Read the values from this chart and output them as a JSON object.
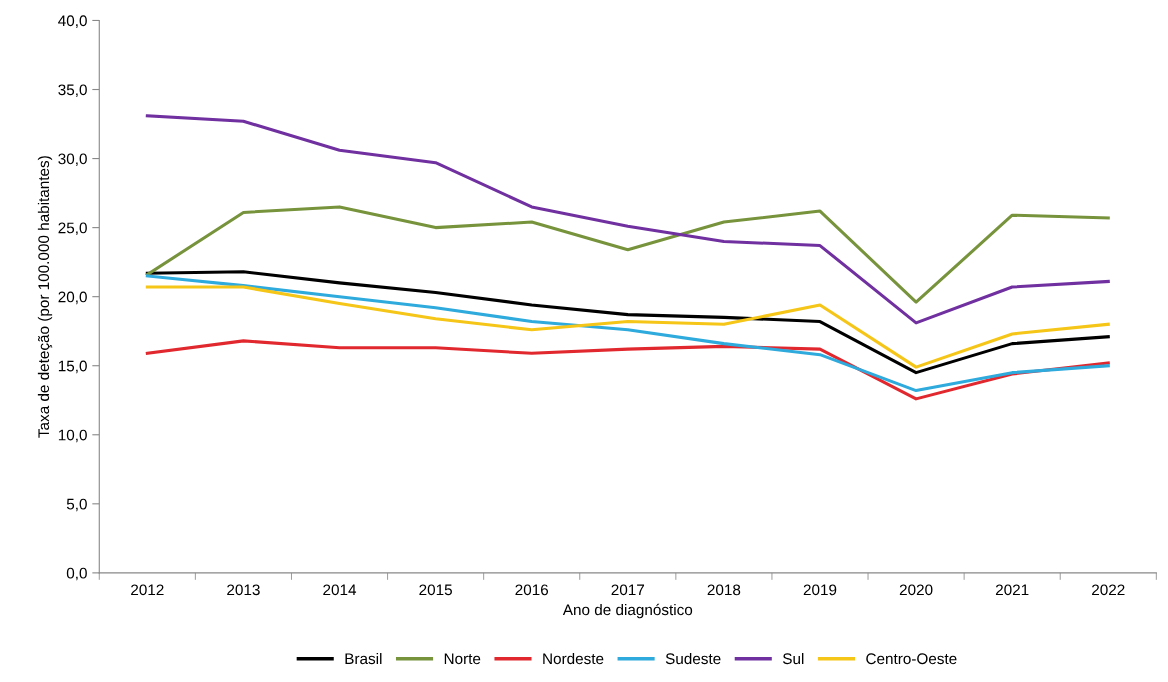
{
  "chart_data": {
    "type": "line",
    "xlabel": "Ano de diagnóstico",
    "ylabel": "Taxa de deteção (por 100.000 habitantes)",
    "categories": [
      "2012",
      "2013",
      "2014",
      "2015",
      "2016",
      "2017",
      "2018",
      "2019",
      "2020",
      "2021",
      "2022"
    ],
    "series": [
      {
        "name": "Brasil",
        "color": "#000000",
        "values": [
          21.7,
          21.8,
          21.0,
          20.3,
          19.4,
          18.7,
          18.5,
          18.2,
          14.5,
          16.6,
          17.1
        ]
      },
      {
        "name": "Norte",
        "color": "#77933c",
        "values": [
          21.6,
          26.1,
          26.5,
          25.0,
          25.4,
          23.4,
          25.4,
          26.2,
          19.6,
          25.9,
          25.7
        ]
      },
      {
        "name": "Nordeste",
        "color": "#e0282e",
        "values": [
          15.9,
          16.8,
          16.3,
          16.3,
          15.9,
          16.2,
          16.4,
          16.2,
          12.6,
          14.4,
          15.2
        ]
      },
      {
        "name": "Sudeste",
        "color": "#2eaadc",
        "values": [
          21.5,
          20.8,
          20.0,
          19.2,
          18.2,
          17.6,
          16.6,
          15.8,
          13.2,
          14.5,
          15.0
        ]
      },
      {
        "name": "Sul",
        "color": "#7030a0",
        "values": [
          33.1,
          32.7,
          30.6,
          29.7,
          26.5,
          25.1,
          24.0,
          23.7,
          18.1,
          20.7,
          21.1
        ]
      },
      {
        "name": "Centro-Oeste",
        "color": "#f5c518",
        "values": [
          20.7,
          20.7,
          19.5,
          18.4,
          17.6,
          18.2,
          18.0,
          19.4,
          14.9,
          17.3,
          18.0
        ]
      }
    ],
    "ylim": [
      0,
      40
    ],
    "yticks": [
      {
        "value": 0,
        "label": "0,0"
      },
      {
        "value": 5,
        "label": "5,0"
      },
      {
        "value": 10,
        "label": "10,0"
      },
      {
        "value": 15,
        "label": "15,0"
      },
      {
        "value": 20,
        "label": "20,0"
      },
      {
        "value": 25,
        "label": "25,0"
      },
      {
        "value": 30,
        "label": "30,0"
      },
      {
        "value": 35,
        "label": "35,0"
      },
      {
        "value": 40,
        "label": "40,0"
      }
    ],
    "legend": "bottom",
    "grid": false,
    "marker": "none",
    "line_style": "solid"
  }
}
